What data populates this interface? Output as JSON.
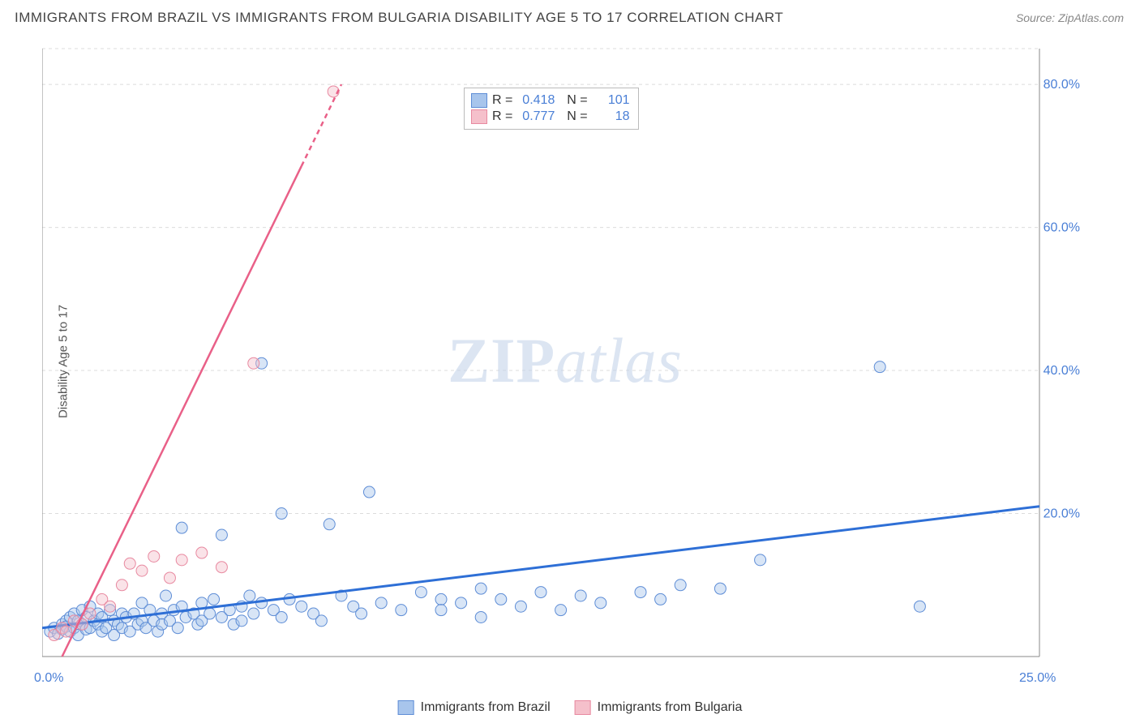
{
  "title": "IMMIGRANTS FROM BRAZIL VS IMMIGRANTS FROM BULGARIA DISABILITY AGE 5 TO 17 CORRELATION CHART",
  "source": "Source: ZipAtlas.com",
  "y_axis_label": "Disability Age 5 to 17",
  "watermark_a": "ZIP",
  "watermark_b": "atlas",
  "chart": {
    "type": "scatter",
    "background_color": "#ffffff",
    "grid_color": "#dcdcdc",
    "axis_color": "#888888",
    "xlim": [
      0,
      25
    ],
    "ylim": [
      0,
      85
    ],
    "x_ticks": [
      {
        "v": 0,
        "l": "0.0%"
      },
      {
        "v": 25,
        "l": "25.0%"
      }
    ],
    "y_ticks": [
      {
        "v": 20,
        "l": "20.0%"
      },
      {
        "v": 40,
        "l": "40.0%"
      },
      {
        "v": 60,
        "l": "60.0%"
      },
      {
        "v": 80,
        "l": "80.0%"
      }
    ],
    "gridlines_y": [
      20,
      40,
      60,
      80,
      85
    ],
    "marker_radius": 7,
    "marker_opacity": 0.45,
    "series": [
      {
        "name": "Immigrants from Brazil",
        "color_fill": "#a8c5ec",
        "color_stroke": "#5e8dd6",
        "line_color": "#2e6fd6",
        "line_width": 3,
        "r": "0.418",
        "n": "101",
        "trend": {
          "x1": 0,
          "y1": 4,
          "x2": 25,
          "y2": 21
        },
        "points": [
          [
            0.2,
            3.5
          ],
          [
            0.3,
            4.0
          ],
          [
            0.4,
            3.2
          ],
          [
            0.5,
            4.5
          ],
          [
            0.5,
            3.8
          ],
          [
            0.6,
            5.0
          ],
          [
            0.6,
            4.2
          ],
          [
            0.7,
            3.5
          ],
          [
            0.7,
            5.5
          ],
          [
            0.8,
            4.0
          ],
          [
            0.8,
            6.0
          ],
          [
            0.9,
            3.0
          ],
          [
            0.9,
            5.0
          ],
          [
            1.0,
            4.5
          ],
          [
            1.0,
            6.5
          ],
          [
            1.1,
            3.8
          ],
          [
            1.1,
            5.5
          ],
          [
            1.2,
            4.0
          ],
          [
            1.2,
            7.0
          ],
          [
            1.3,
            5.0
          ],
          [
            1.4,
            4.5
          ],
          [
            1.4,
            6.0
          ],
          [
            1.5,
            3.5
          ],
          [
            1.5,
            5.5
          ],
          [
            1.6,
            4.0
          ],
          [
            1.7,
            6.5
          ],
          [
            1.8,
            5.0
          ],
          [
            1.8,
            3.0
          ],
          [
            1.9,
            4.5
          ],
          [
            2.0,
            6.0
          ],
          [
            2.0,
            4.0
          ],
          [
            2.1,
            5.5
          ],
          [
            2.2,
            3.5
          ],
          [
            2.3,
            6.0
          ],
          [
            2.4,
            4.5
          ],
          [
            2.5,
            5.0
          ],
          [
            2.5,
            7.5
          ],
          [
            2.6,
            4.0
          ],
          [
            2.7,
            6.5
          ],
          [
            2.8,
            5.0
          ],
          [
            2.9,
            3.5
          ],
          [
            3.0,
            6.0
          ],
          [
            3.0,
            4.5
          ],
          [
            3.1,
            8.5
          ],
          [
            3.2,
            5.0
          ],
          [
            3.3,
            6.5
          ],
          [
            3.4,
            4.0
          ],
          [
            3.5,
            7.0
          ],
          [
            3.5,
            18.0
          ],
          [
            3.6,
            5.5
          ],
          [
            3.8,
            6.0
          ],
          [
            3.9,
            4.5
          ],
          [
            4.0,
            7.5
          ],
          [
            4.0,
            5.0
          ],
          [
            4.2,
            6.0
          ],
          [
            4.3,
            8.0
          ],
          [
            4.5,
            5.5
          ],
          [
            4.5,
            17.0
          ],
          [
            4.7,
            6.5
          ],
          [
            4.8,
            4.5
          ],
          [
            5.0,
            7.0
          ],
          [
            5.0,
            5.0
          ],
          [
            5.2,
            8.5
          ],
          [
            5.3,
            6.0
          ],
          [
            5.5,
            41.0
          ],
          [
            5.5,
            7.5
          ],
          [
            5.8,
            6.5
          ],
          [
            6.0,
            20.0
          ],
          [
            6.0,
            5.5
          ],
          [
            6.2,
            8.0
          ],
          [
            6.5,
            7.0
          ],
          [
            6.8,
            6.0
          ],
          [
            7.0,
            5.0
          ],
          [
            7.2,
            18.5
          ],
          [
            7.5,
            8.5
          ],
          [
            7.8,
            7.0
          ],
          [
            8.0,
            6.0
          ],
          [
            8.2,
            23.0
          ],
          [
            8.5,
            7.5
          ],
          [
            9.0,
            6.5
          ],
          [
            9.5,
            9.0
          ],
          [
            10.0,
            8.0
          ],
          [
            10.0,
            6.5
          ],
          [
            10.5,
            7.5
          ],
          [
            11.0,
            9.5
          ],
          [
            11.0,
            5.5
          ],
          [
            11.5,
            8.0
          ],
          [
            12.0,
            7.0
          ],
          [
            12.5,
            9.0
          ],
          [
            13.0,
            6.5
          ],
          [
            13.5,
            8.5
          ],
          [
            14.0,
            7.5
          ],
          [
            15.0,
            9.0
          ],
          [
            15.5,
            8.0
          ],
          [
            16.0,
            10.0
          ],
          [
            17.0,
            9.5
          ],
          [
            18.0,
            13.5
          ],
          [
            21.0,
            40.5
          ],
          [
            22.0,
            7.0
          ]
        ]
      },
      {
        "name": "Immigrants from Bulgaria",
        "color_fill": "#f5c0cb",
        "color_stroke": "#e889a0",
        "line_color": "#e96088",
        "line_width": 2.5,
        "r": "0.777",
        "n": "18",
        "trend": {
          "x1": 0.5,
          "y1": 0,
          "x2": 7.5,
          "y2": 80,
          "dash_after_x": 6.5
        },
        "points": [
          [
            0.3,
            3.0
          ],
          [
            0.5,
            4.0
          ],
          [
            0.6,
            3.5
          ],
          [
            0.8,
            5.0
          ],
          [
            1.0,
            4.5
          ],
          [
            1.2,
            6.0
          ],
          [
            1.5,
            8.0
          ],
          [
            1.7,
            7.0
          ],
          [
            2.0,
            10.0
          ],
          [
            2.2,
            13.0
          ],
          [
            2.5,
            12.0
          ],
          [
            2.8,
            14.0
          ],
          [
            3.2,
            11.0
          ],
          [
            3.5,
            13.5
          ],
          [
            4.0,
            14.5
          ],
          [
            4.5,
            12.5
          ],
          [
            5.3,
            41.0
          ],
          [
            7.3,
            79.0
          ]
        ]
      }
    ]
  },
  "legend_bottom": [
    {
      "label": "Immigrants from Brazil",
      "fill": "#a8c5ec",
      "stroke": "#5e8dd6"
    },
    {
      "label": "Immigrants from Bulgaria",
      "fill": "#f5c0cb",
      "stroke": "#e889a0"
    }
  ]
}
